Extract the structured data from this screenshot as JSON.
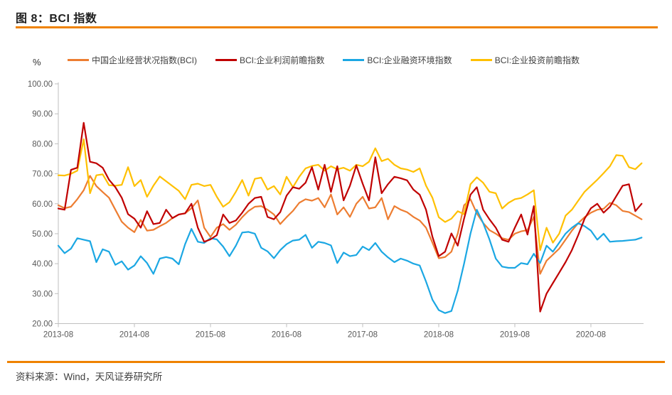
{
  "header": {
    "title": "图 8：BCI 指数"
  },
  "footer": {
    "source": "资料来源：Wind，天风证券研究所"
  },
  "chart": {
    "unit_label": "%"
  },
  "chart_data": {
    "type": "line",
    "title": "图 8：BCI 指数",
    "ylabel": "%",
    "ylim": [
      20,
      100
    ],
    "ytick_step": 10,
    "ytick_decimals": 2,
    "grid": false,
    "legend_position": "top",
    "frequency": "monthly",
    "x_start": "2013-08",
    "x_end": "2021-04",
    "n_points": 93,
    "x_tick_every_months": 12,
    "x_tick_labels": [
      "2013-08",
      "2014-08",
      "2015-08",
      "2016-08",
      "2017-08",
      "2018-08",
      "2019-08",
      "2020-08"
    ],
    "axis_color": "#bfbfbf",
    "tick_label_color": "#595959",
    "series": [
      {
        "name": "中国企业经营状况指数(BCI)",
        "color": "#ED7D31",
        "values": [
          59.5,
          58.5,
          59,
          61.5,
          64.5,
          69.3,
          65.9,
          63.9,
          62,
          58,
          54,
          52,
          50.5,
          54.6,
          51,
          51.3,
          52.5,
          53.6,
          55.2,
          56.4,
          56.8,
          58.5,
          61.1,
          52,
          48.9,
          52,
          53.2,
          51.3,
          53,
          55.5,
          57.6,
          59,
          59.2,
          58,
          56.4,
          53.2,
          55.5,
          57.6,
          60.3,
          61.5,
          61,
          61.9,
          58.8,
          63.1,
          56.4,
          58.8,
          55.6,
          60,
          62.3,
          58.4,
          58.8,
          61.9,
          54.8,
          59.2,
          58,
          57.2,
          55.6,
          54.4,
          52,
          47,
          41.8,
          42.2,
          44,
          50,
          59.5,
          61.5,
          56.8,
          53.6,
          51.2,
          50,
          48.5,
          48,
          50,
          50.8,
          51.2,
          55.6,
          36.6,
          41,
          43,
          45,
          48,
          51,
          53.5,
          55.5,
          57,
          58,
          58.3,
          60.3,
          59.5,
          57.6,
          57.2,
          56,
          54.8
        ]
      },
      {
        "name": "BCI:企业利润前瞻指数",
        "color": "#C00000",
        "values": [
          58.4,
          58,
          71.3,
          72,
          87,
          74,
          73.5,
          72,
          68,
          65.5,
          62,
          56.5,
          55,
          52,
          57.5,
          53.2,
          53.6,
          58,
          55.2,
          56.4,
          56.8,
          60,
          52,
          47.3,
          48.1,
          49.5,
          56.4,
          53.6,
          54.4,
          57,
          60,
          61.9,
          62.3,
          55.6,
          54.8,
          57.2,
          62.7,
          65.5,
          65,
          67,
          72.2,
          64.7,
          73,
          63.9,
          72.5,
          61.1,
          66,
          72.8,
          66.7,
          61.1,
          75.5,
          63.5,
          66.5,
          69,
          68.5,
          67.8,
          64.7,
          63,
          58,
          49,
          42.5,
          44,
          50.1,
          46,
          55,
          63,
          65.5,
          58,
          54.8,
          52,
          48,
          47.3,
          52,
          56.4,
          49.7,
          59.2,
          24,
          30,
          33.5,
          37,
          40.5,
          44.5,
          49.5,
          55,
          58.5,
          60,
          57,
          59,
          62.5,
          66,
          66.5,
          57.5,
          60
        ]
      },
      {
        "name": "BCI:企业融资环境指数",
        "color": "#1BA7E3",
        "values": [
          46,
          43.5,
          45,
          48.5,
          48,
          47.5,
          40.5,
          44.8,
          44,
          39.6,
          40.8,
          38,
          39.4,
          42.5,
          40.2,
          36.6,
          41.7,
          42.2,
          41.7,
          39.8,
          46.5,
          51.6,
          47.3,
          46.9,
          48.5,
          48.1,
          45.7,
          42.5,
          46,
          50.4,
          50.6,
          50,
          45.3,
          44.1,
          41.8,
          44.5,
          46.5,
          47.7,
          48,
          49.6,
          45.3,
          47.3,
          46.9,
          46.1,
          40.2,
          43.7,
          42.5,
          42.9,
          45.7,
          44.5,
          46.9,
          44,
          42.1,
          40.5,
          41.7,
          41,
          40,
          39.4,
          34,
          28,
          24.5,
          23.5,
          24.2,
          31,
          40,
          50,
          58,
          53.6,
          48.1,
          41.7,
          39,
          38.6,
          38.6,
          40.2,
          39.8,
          43.3,
          40.2,
          46,
          44,
          47,
          50,
          52,
          53.5,
          52.5,
          51,
          48,
          50,
          47.3,
          47.5,
          47.6,
          47.8,
          48,
          48.7
        ]
      },
      {
        "name": "BCI:企业投资前瞻指数",
        "color": "#FFC000",
        "values": [
          69.5,
          69.4,
          70,
          71,
          81.5,
          63.5,
          69.5,
          69.8,
          66.2,
          66,
          66.3,
          72.2,
          65.9,
          67.9,
          62.3,
          66,
          69.1,
          67.5,
          65.9,
          64.3,
          61.5,
          66.3,
          66.7,
          65.9,
          66.3,
          62.3,
          59,
          60.5,
          64,
          67.9,
          62.7,
          68.3,
          68.7,
          64.7,
          65.9,
          63.1,
          69,
          65.5,
          69,
          71.8,
          72.6,
          73,
          71,
          72.5,
          71.5,
          72,
          71,
          73,
          72.5,
          74,
          78.5,
          74.2,
          75,
          73,
          71.8,
          71.4,
          70.6,
          71.8,
          66,
          62,
          55.5,
          53.9,
          55,
          57.5,
          56.5,
          66.5,
          68.8,
          67,
          64,
          63.5,
          58.4,
          60.3,
          61.5,
          61.9,
          63.1,
          64.5,
          44.5,
          52,
          47,
          50,
          56,
          58,
          61,
          64,
          66,
          68,
          70.2,
          72.5,
          76.2,
          76,
          72.2,
          71.5,
          73.5
        ]
      }
    ]
  }
}
